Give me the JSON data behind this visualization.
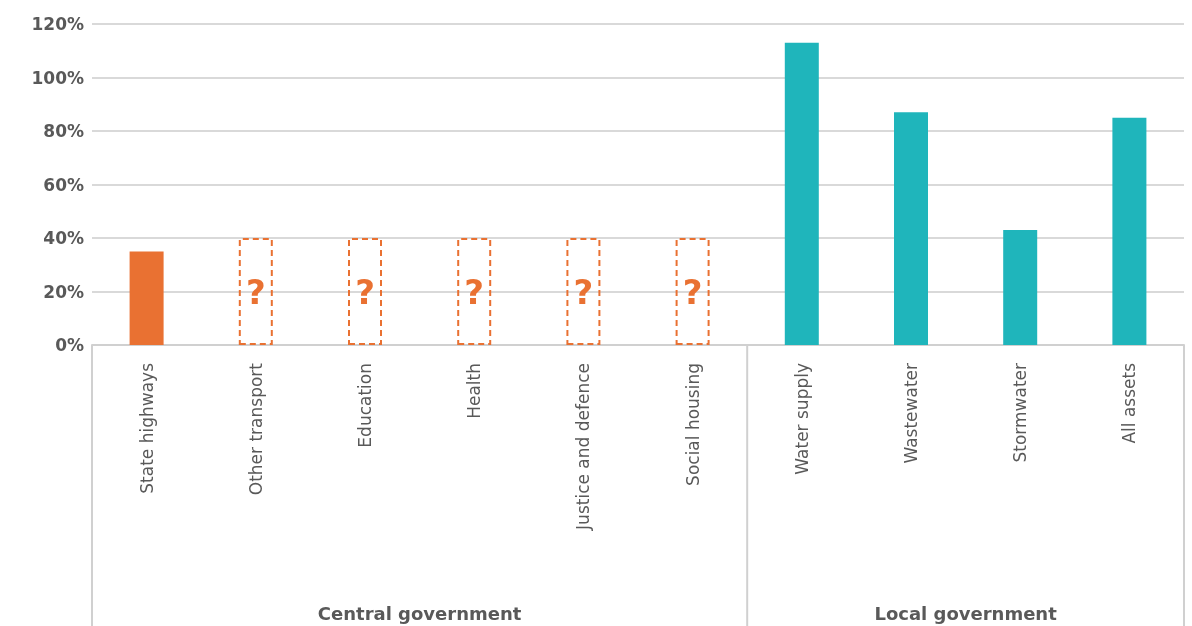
{
  "chart_data": {
    "type": "bar",
    "categories": [
      "State highways",
      "Other transport",
      "Education",
      "Health",
      "Justice and defence",
      "Social housing",
      "Water supply",
      "Wastewater",
      "Stormwater",
      "All assets"
    ],
    "series": [
      {
        "values": [
          35,
          null,
          null,
          null,
          null,
          null,
          113,
          87,
          43,
          85
        ],
        "colors": [
          "#e97132",
          "#e97132",
          "#e97132",
          "#e97132",
          "#e97132",
          "#e97132",
          "#1fb5bb",
          "#1fb5bb",
          "#1fb5bb",
          "#1fb5bb"
        ]
      },
      {
        "values": [
          null,
          40,
          40,
          40,
          40,
          40,
          null,
          null,
          null,
          null
        ],
        "color": "#e97132",
        "line_style": "dashed",
        "value_labels": [
          null,
          "?",
          "?",
          "?",
          "?",
          "?",
          null,
          null,
          null,
          null
        ]
      }
    ],
    "ylim": [
      0,
      120
    ],
    "yticks": [
      {
        "value": 0,
        "label": "0%"
      },
      {
        "value": 20,
        "label": "20%"
      },
      {
        "value": 40,
        "label": "40%"
      },
      {
        "value": 60,
        "label": "60%"
      },
      {
        "value": 80,
        "label": "80%"
      },
      {
        "value": 100,
        "label": "100%"
      },
      {
        "value": 120,
        "label": "120%"
      }
    ],
    "grid": "y",
    "annotations": [
      "Central government",
      "Local government"
    ]
  }
}
